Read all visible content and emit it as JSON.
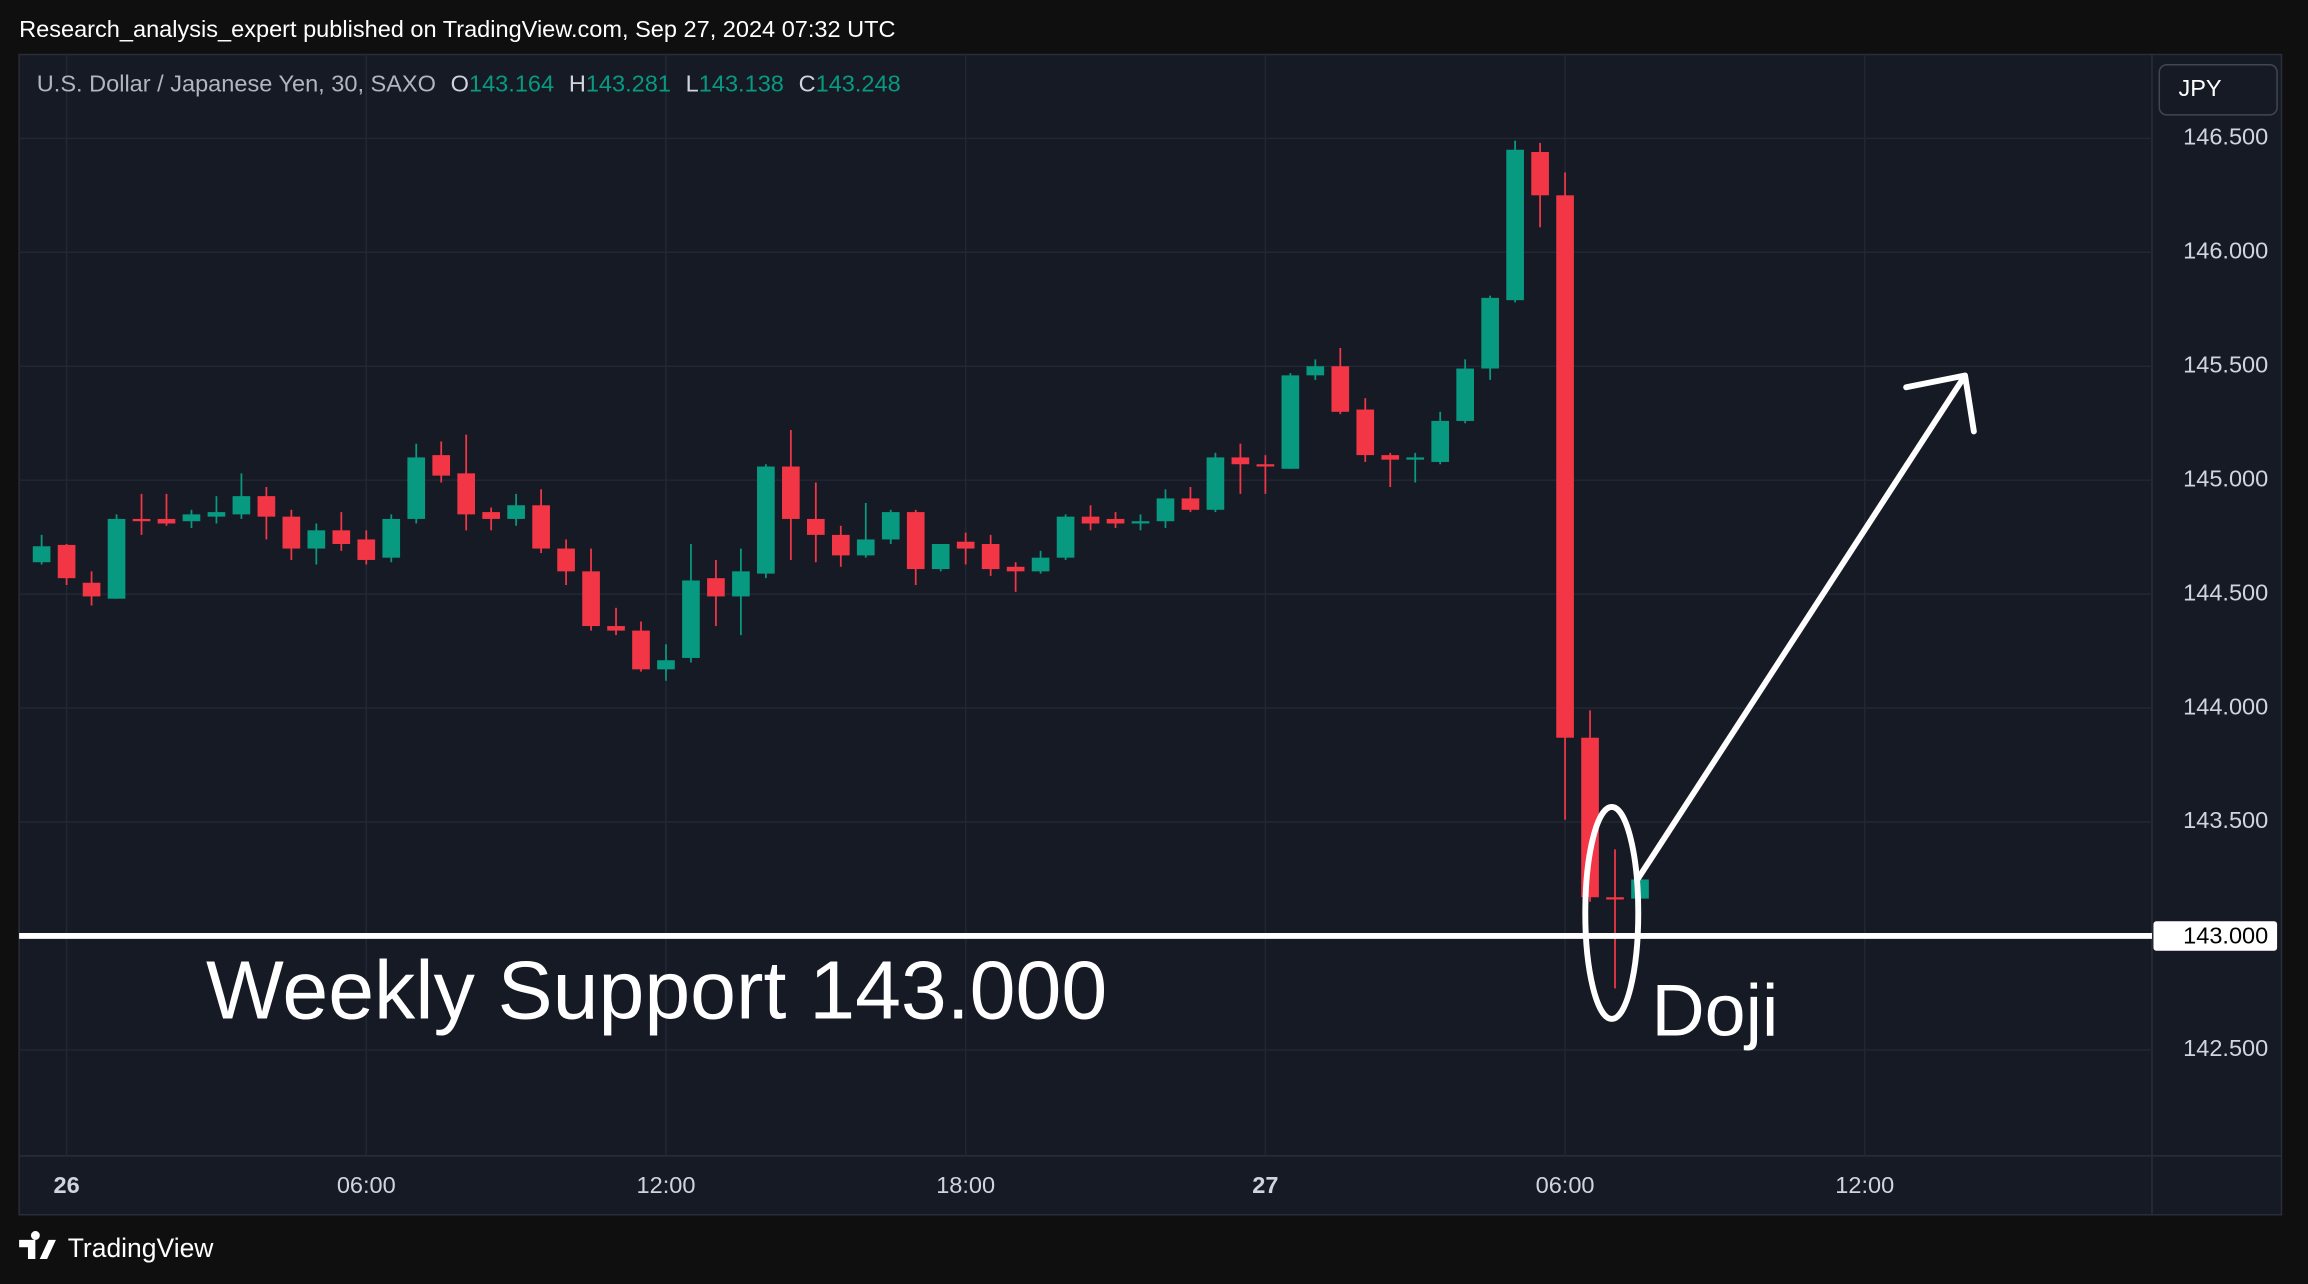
{
  "header": {
    "published": "Research_analysis_expert published on TradingView.com, Sep 27, 2024 07:32 UTC"
  },
  "chart_data": {
    "type": "candlestick",
    "symbol": "U.S. Dollar / Japanese Yen, 30, SAXO",
    "ohlc_letters": [
      "O",
      "H",
      "L",
      "C"
    ],
    "currency": "JPY",
    "up_color": "#089981",
    "down_color": "#f23645",
    "grid": true,
    "x": [
      -1,
      0,
      1,
      2,
      3,
      4,
      5,
      6,
      7,
      8,
      9,
      10,
      11,
      12,
      13,
      14,
      15,
      16,
      17,
      18,
      19,
      20,
      21,
      22,
      23,
      24,
      25,
      26,
      27,
      28,
      29,
      30,
      31,
      32,
      33,
      34,
      35,
      36,
      37,
      38,
      39,
      40,
      41,
      42,
      43,
      44,
      45,
      46,
      47,
      48,
      49,
      50,
      51,
      52,
      53,
      54,
      55,
      56,
      57,
      58,
      59,
      60,
      61,
      62,
      63
    ],
    "open": [
      144.64,
      144.716,
      144.55,
      144.48,
      144.83,
      144.83,
      144.82,
      144.84,
      144.85,
      144.93,
      144.84,
      144.7,
      144.78,
      144.74,
      144.66,
      144.83,
      145.11,
      145.03,
      144.86,
      144.83,
      144.89,
      144.7,
      144.6,
      144.36,
      144.34,
      144.17,
      144.22,
      144.57,
      144.49,
      144.59,
      145.06,
      144.83,
      144.76,
      144.67,
      144.74,
      144.86,
      144.61,
      144.73,
      144.72,
      144.62,
      144.6,
      144.66,
      144.84,
      144.83,
      144.81,
      144.82,
      144.92,
      144.87,
      145.1,
      145.07,
      145.05,
      145.46,
      145.5,
      145.31,
      145.11,
      145.09,
      145.08,
      145.26,
      145.49,
      145.79,
      146.44,
      146.25,
      143.87,
      143.17,
      143.164
    ],
    "high": [
      144.76,
      144.72,
      144.6,
      144.85,
      144.94,
      144.94,
      144.87,
      144.93,
      145.03,
      144.97,
      144.87,
      144.81,
      144.86,
      144.78,
      144.85,
      145.16,
      145.17,
      145.2,
      144.88,
      144.94,
      144.96,
      144.74,
      144.7,
      144.44,
      144.38,
      144.28,
      144.72,
      144.65,
      144.7,
      145.07,
      145.22,
      144.99,
      144.8,
      144.9,
      144.87,
      144.87,
      144.72,
      144.77,
      144.76,
      144.64,
      144.69,
      144.85,
      144.89,
      144.86,
      144.85,
      144.96,
      144.97,
      145.12,
      145.16,
      145.11,
      145.47,
      145.53,
      145.58,
      145.36,
      145.12,
      145.12,
      145.3,
      145.53,
      145.81,
      146.49,
      146.48,
      146.35,
      143.99,
      143.38,
      143.281
    ],
    "low": [
      144.63,
      144.54,
      144.45,
      144.48,
      144.76,
      144.8,
      144.79,
      144.81,
      144.83,
      144.74,
      144.65,
      144.63,
      144.69,
      144.63,
      144.64,
      144.81,
      144.99,
      144.78,
      144.78,
      144.8,
      144.68,
      144.54,
      144.34,
      144.32,
      144.16,
      144.12,
      144.2,
      144.36,
      144.32,
      144.57,
      144.65,
      144.64,
      144.62,
      144.66,
      144.72,
      144.54,
      144.6,
      144.63,
      144.58,
      144.51,
      144.59,
      144.65,
      144.78,
      144.79,
      144.78,
      144.79,
      144.86,
      144.86,
      144.94,
      144.94,
      145.05,
      145.44,
      145.29,
      145.08,
      144.97,
      144.99,
      145.07,
      145.25,
      145.44,
      145.78,
      146.11,
      143.51,
      143.15,
      142.77,
      143.138
    ],
    "close": [
      144.71,
      144.57,
      144.49,
      144.83,
      144.82,
      144.81,
      144.85,
      144.86,
      144.93,
      144.84,
      144.7,
      144.78,
      144.72,
      144.65,
      144.83,
      145.1,
      145.02,
      144.85,
      144.83,
      144.89,
      144.7,
      144.6,
      144.36,
      144.34,
      144.17,
      144.21,
      144.56,
      144.49,
      144.6,
      145.06,
      144.83,
      144.76,
      144.67,
      144.74,
      144.86,
      144.61,
      144.72,
      144.7,
      144.61,
      144.6,
      144.66,
      144.84,
      144.81,
      144.81,
      144.82,
      144.92,
      144.87,
      145.1,
      145.07,
      145.06,
      145.46,
      145.5,
      145.3,
      145.11,
      145.09,
      145.1,
      145.26,
      145.49,
      145.8,
      146.45,
      146.25,
      143.87,
      143.17,
      143.16,
      143.248
    ],
    "xlim": [
      -1.9,
      83.5
    ],
    "xticks": [
      {
        "value": 0,
        "label": "26"
      },
      {
        "value": 12,
        "label": "06:00"
      },
      {
        "value": 24,
        "label": "12:00"
      },
      {
        "value": 36,
        "label": "18:00"
      },
      {
        "value": 48,
        "label": "27"
      },
      {
        "value": 60,
        "label": "06:00"
      },
      {
        "value": 72,
        "label": "12:00"
      }
    ],
    "ylim": [
      142.035,
      146.868
    ],
    "yticks": [
      {
        "value": 142.5,
        "label": "142.500"
      },
      {
        "value": 143.5,
        "label": "143.500"
      },
      {
        "value": 144,
        "label": "144.000"
      },
      {
        "value": 144.5,
        "label": "144.500"
      },
      {
        "value": 145,
        "label": "145.000"
      },
      {
        "value": 145.5,
        "label": "145.500"
      },
      {
        "value": 146,
        "label": "146.000"
      },
      {
        "value": 146.5,
        "label": "146.500"
      }
    ],
    "support": {
      "value": 143,
      "label": "143.000"
    },
    "annotations": {
      "support_text": "Weekly Support 143.000",
      "doji": "Doji"
    }
  },
  "footer": {
    "brand": "TradingView"
  }
}
